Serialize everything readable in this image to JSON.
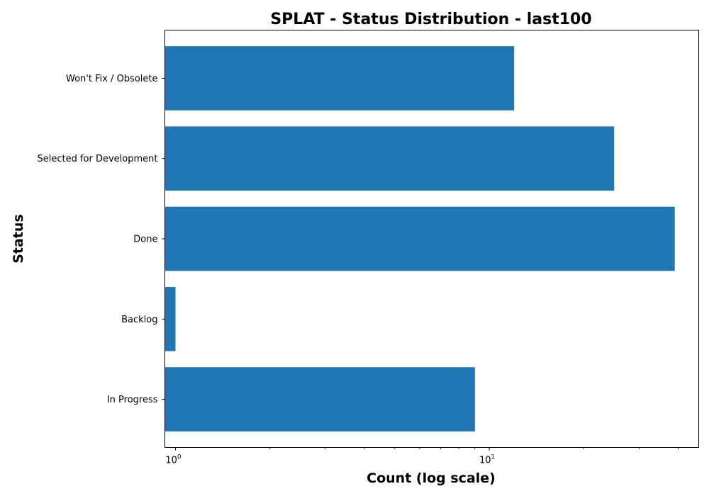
{
  "chart_data": {
    "type": "bar",
    "orientation": "horizontal",
    "title": "SPLAT - Status Distribution - last100",
    "xlabel": "Count (log scale)",
    "ylabel": "Status",
    "xscale": "log",
    "xlim": [
      0.925,
      46.5
    ],
    "categories": [
      "In Progress",
      "Backlog",
      "Done",
      "Selected for Development",
      "Won't Fix / Obsolete"
    ],
    "values": [
      9,
      1,
      39,
      25,
      12
    ],
    "x_tick_labels": [
      {
        "value": 1,
        "base": "10",
        "exponent": "0"
      },
      {
        "value": 10,
        "base": "10",
        "exponent": "1"
      }
    ],
    "bar_color": "#1f77b4",
    "grid": false,
    "legend": "none"
  }
}
